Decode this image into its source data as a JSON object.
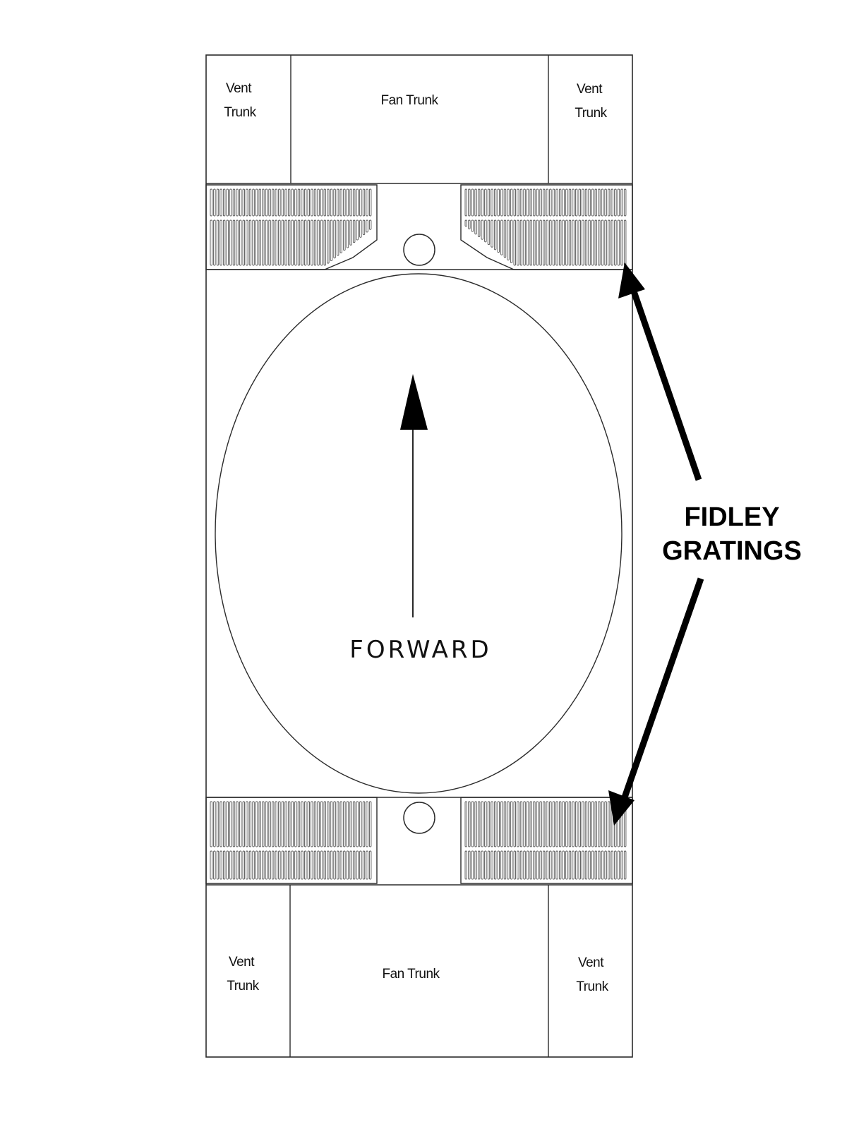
{
  "top_block": {
    "left_vent": {
      "line1": "Vent",
      "line2": "Trunk"
    },
    "fan_trunk": "Fan Trunk",
    "right_vent": {
      "line1": "Vent",
      "line2": "Trunk"
    }
  },
  "bottom_block": {
    "left_vent": {
      "line1": "Vent",
      "line2": "Trunk"
    },
    "fan_trunk": "Fan Trunk",
    "right_vent": {
      "line1": "Vent",
      "line2": "Trunk"
    }
  },
  "hatch": {
    "direction_label": "FORWARD"
  },
  "callout": {
    "line1": "FIDLEY",
    "line2": "GRATINGS"
  },
  "colors": {
    "line": "#2b2b2b",
    "grating_fill": "#555555",
    "arrow": "#000000",
    "background": "#ffffff"
  }
}
